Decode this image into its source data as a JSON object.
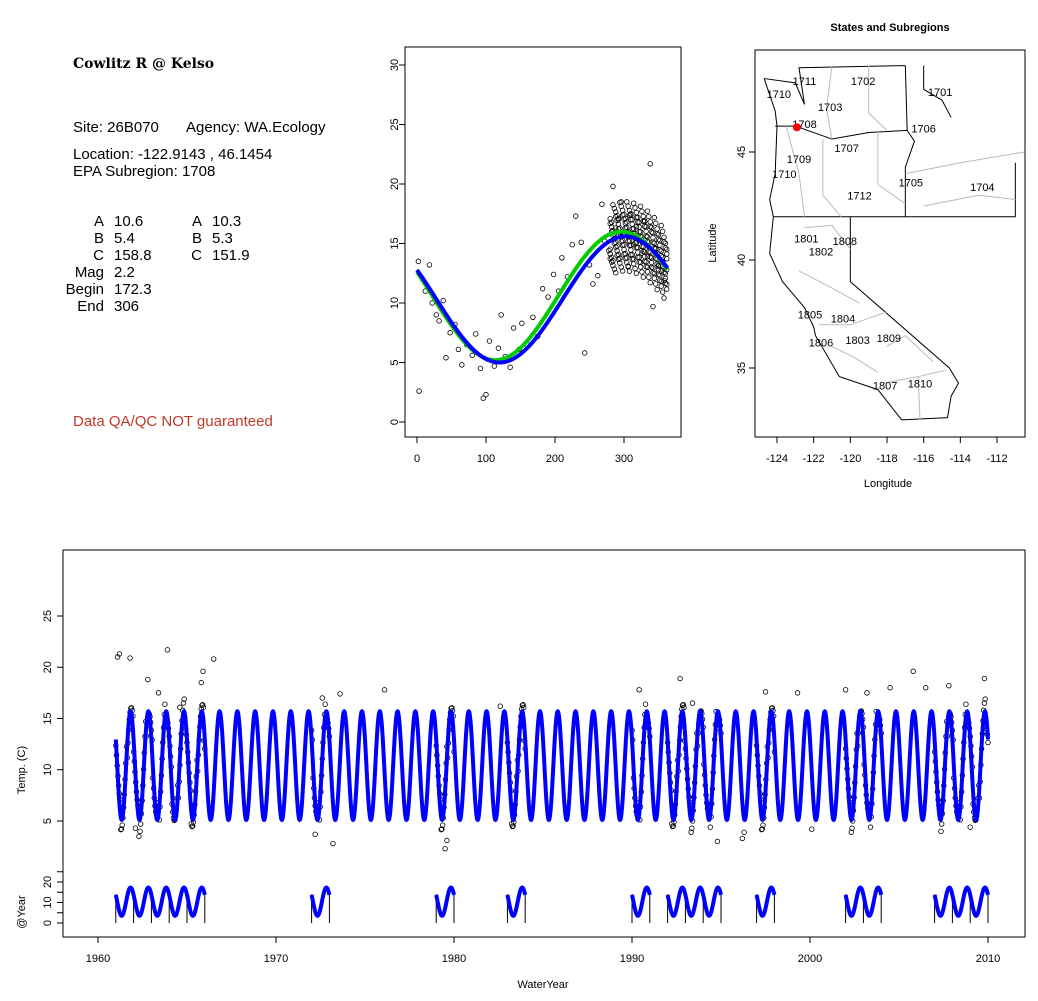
{
  "info": {
    "title": "Cowlitz R @ Kelso",
    "site": "Site: 26B070",
    "agency": "Agency: WA.Ecology",
    "location": "Location: -122.9143 , 46.1454",
    "subregion": "EPA Subregion: 1708",
    "params_left": [
      [
        "A",
        "10.6"
      ],
      [
        "B",
        "5.4"
      ],
      [
        "C",
        "158.8"
      ],
      [
        "Mag",
        "2.2"
      ],
      [
        "Begin",
        "172.3"
      ],
      [
        "End",
        "306"
      ]
    ],
    "params_right": [
      [
        "A",
        "10.3"
      ],
      [
        "B",
        "5.3"
      ],
      [
        "C",
        "151.9"
      ]
    ],
    "disclaimer": "Data QA/QC NOT guaranteed"
  },
  "chart_data": [
    {
      "type": "scatter",
      "title": "",
      "xlabel": "",
      "ylabel": "",
      "xlim": [
        0,
        365
      ],
      "ylim": [
        0,
        30
      ],
      "xticks": [
        "0",
        "100",
        "200",
        "300"
      ],
      "yticks": [
        "0",
        "5",
        "10",
        "15",
        "20",
        "25",
        "30"
      ],
      "curves": [
        {
          "name": "fit-green",
          "color": "#00cc00",
          "mean": 10.6,
          "amp": 5.4,
          "peak_day": 296
        },
        {
          "name": "fit-blue",
          "color": "#0000ff",
          "mean": 10.3,
          "amp": 5.3,
          "peak_day": 302
        }
      ],
      "points": [
        [
          2,
          13.5
        ],
        [
          3,
          2.6
        ],
        [
          8,
          12
        ],
        [
          12,
          11
        ],
        [
          18,
          13.2
        ],
        [
          22,
          10
        ],
        [
          28,
          9
        ],
        [
          32,
          8.5
        ],
        [
          38,
          10.2
        ],
        [
          42,
          5.4
        ],
        [
          48,
          7.5
        ],
        [
          55,
          8.2
        ],
        [
          60,
          6.1
        ],
        [
          65,
          4.8
        ],
        [
          72,
          6.5
        ],
        [
          80,
          5.6
        ],
        [
          85,
          7.4
        ],
        [
          92,
          4.5
        ],
        [
          96,
          2
        ],
        [
          100,
          2.3
        ],
        [
          105,
          6.8
        ],
        [
          112,
          4.7
        ],
        [
          118,
          6.2
        ],
        [
          122,
          9
        ],
        [
          128,
          5.5
        ],
        [
          135,
          4.6
        ],
        [
          140,
          7.9
        ],
        [
          148,
          6.1
        ],
        [
          152,
          8.3
        ],
        [
          160,
          6.5
        ],
        [
          168,
          8.8
        ],
        [
          175,
          7.2
        ],
        [
          182,
          11.2
        ],
        [
          190,
          10.5
        ],
        [
          198,
          12.4
        ],
        [
          205,
          11
        ],
        [
          210,
          13.8
        ],
        [
          218,
          12.2
        ],
        [
          225,
          14.9
        ],
        [
          230,
          17.3
        ],
        [
          238,
          15.1
        ],
        [
          243,
          5.8
        ],
        [
          250,
          13.2
        ],
        [
          255,
          11.6
        ],
        [
          262,
          12.3
        ],
        [
          268,
          18.3
        ],
        [
          272,
          15.2
        ],
        [
          278,
          14.4
        ],
        [
          284,
          19.8
        ],
        [
          288,
          16.3
        ],
        [
          292,
          17.1
        ],
        [
          296,
          18.5
        ],
        [
          300,
          15.9
        ],
        [
          304,
          16.8
        ],
        [
          306,
          13.1
        ],
        [
          310,
          17.5
        ],
        [
          314,
          14.9
        ],
        [
          318,
          16.4
        ],
        [
          322,
          15.3
        ],
        [
          326,
          14.2
        ],
        [
          330,
          16.9
        ],
        [
          334,
          13.9
        ],
        [
          338,
          21.7
        ],
        [
          342,
          9.7
        ],
        [
          346,
          14.6
        ],
        [
          350,
          13.1
        ],
        [
          354,
          12.7
        ],
        [
          358,
          11.9
        ],
        [
          362,
          12.8
        ]
      ]
    },
    {
      "type": "map",
      "title": "States and Subregions",
      "xlabel": "Longitude",
      "ylabel": "Latitude",
      "xlim": [
        -125.2,
        -110.4
      ],
      "ylim": [
        32.3,
        50.2
      ],
      "xticks": [
        "-124",
        "-122",
        "-120",
        "-118",
        "-116",
        "-114",
        "-112"
      ],
      "yticks": [
        "35",
        "40",
        "45"
      ],
      "site": {
        "lon": -122.9143,
        "lat": 46.1454,
        "color": "#ff0000"
      },
      "regions": [
        {
          "label": "1711",
          "lon": -122.5,
          "lat": 48.1
        },
        {
          "label": "1702",
          "lon": -119.3,
          "lat": 48.1
        },
        {
          "label": "1701",
          "lon": -115.1,
          "lat": 47.6
        },
        {
          "label": "1710",
          "lon": -123.9,
          "lat": 47.5
        },
        {
          "label": "1703",
          "lon": -121.1,
          "lat": 46.9
        },
        {
          "label": "1708",
          "lon": -122.5,
          "lat": 46.1
        },
        {
          "label": "1706",
          "lon": -116,
          "lat": 45.9
        },
        {
          "label": "1707",
          "lon": -120.2,
          "lat": 45.0
        },
        {
          "label": "1709",
          "lon": -122.8,
          "lat": 44.5
        },
        {
          "label": "1710",
          "lon": -123.6,
          "lat": 43.8
        },
        {
          "label": "1705",
          "lon": -116.7,
          "lat": 43.4
        },
        {
          "label": "1704",
          "lon": -112.8,
          "lat": 43.2
        },
        {
          "label": "1712",
          "lon": -119.5,
          "lat": 42.8
        },
        {
          "label": "1801",
          "lon": -122.4,
          "lat": 40.8
        },
        {
          "label": "1808",
          "lon": -120.3,
          "lat": 40.7
        },
        {
          "label": "1802",
          "lon": -121.6,
          "lat": 40.2
        },
        {
          "label": "1805",
          "lon": -122.2,
          "lat": 37.3
        },
        {
          "label": "1804",
          "lon": -120.4,
          "lat": 37.1
        },
        {
          "label": "1806",
          "lon": -121.6,
          "lat": 36.0
        },
        {
          "label": "1803",
          "lon": -119.6,
          "lat": 36.1
        },
        {
          "label": "1809",
          "lon": -117.9,
          "lat": 36.2
        },
        {
          "label": "1807",
          "lon": -118.1,
          "lat": 34.0
        },
        {
          "label": "1810",
          "lon": -116.2,
          "lat": 34.1
        }
      ]
    },
    {
      "type": "line",
      "title": "",
      "xlabel": "WaterYear",
      "ylabel": "Temp. (C)",
      "ylabel2": "@Year",
      "xlim": [
        1958,
        2012
      ],
      "xticks": [
        "1960",
        "1970",
        "1980",
        "1990",
        "2000",
        "2010"
      ],
      "yticks": [
        "5",
        "10",
        "15",
        "20",
        "25"
      ],
      "yticks2": [
        "0",
        "10",
        "20"
      ],
      "series": [
        {
          "name": "modeled",
          "color": "#0000ff",
          "mean": 10.4,
          "amp": 5.3,
          "start": 1961,
          "end": 2010
        }
      ],
      "year_segments": [
        [
          1961,
          1966
        ],
        [
          1972,
          1973
        ],
        [
          1979,
          1980
        ],
        [
          1983,
          1984
        ],
        [
          1990,
          1991
        ],
        [
          1992,
          1995
        ],
        [
          1997,
          1998
        ],
        [
          2002,
          2004
        ],
        [
          2007,
          2010
        ]
      ],
      "outliers": [
        [
          1961.1,
          21
        ],
        [
          1961.2,
          21.3
        ],
        [
          1961.8,
          20.9
        ],
        [
          1962.3,
          3.5
        ],
        [
          1962.1,
          4.3
        ],
        [
          1962.8,
          18.8
        ],
        [
          1963.4,
          17.5
        ],
        [
          1963.9,
          21.7
        ],
        [
          1964.6,
          16.1
        ],
        [
          1965.9,
          19.6
        ],
        [
          1965.8,
          18.5
        ],
        [
          1966.5,
          20.8
        ],
        [
          1972.2,
          3.7
        ],
        [
          1972.6,
          17
        ],
        [
          1973.2,
          2.8
        ],
        [
          1973.6,
          17.4
        ],
        [
          1976.1,
          17.8
        ],
        [
          1979.5,
          2.3
        ],
        [
          1979.6,
          3.1
        ],
        [
          1982.6,
          16.2
        ],
        [
          1990.4,
          17.8
        ],
        [
          1992.7,
          18.9
        ],
        [
          1993.4,
          16.5
        ],
        [
          1994.8,
          3
        ],
        [
          1996.2,
          3.3
        ],
        [
          1996.3,
          3.9
        ],
        [
          1997.5,
          17.6
        ],
        [
          1999.3,
          17.5
        ],
        [
          2000.1,
          4.2
        ],
        [
          2002.0,
          17.8
        ],
        [
          2003.2,
          17.5
        ],
        [
          2004.5,
          18
        ],
        [
          2005.8,
          19.6
        ],
        [
          2006.5,
          18
        ],
        [
          2007.8,
          18.2
        ],
        [
          2009.0,
          4.4
        ],
        [
          2009.8,
          18.9
        ]
      ]
    }
  ]
}
